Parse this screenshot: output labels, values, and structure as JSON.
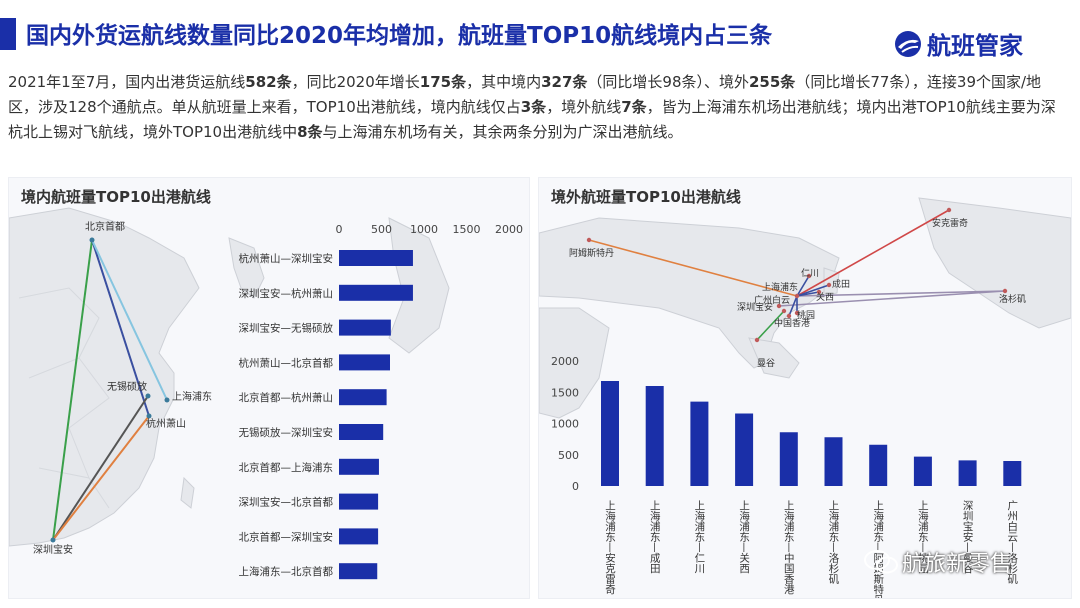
{
  "header": {
    "title": "国内外货运航线数量同比2020年均增加，航班量TOP10航线境内占三条",
    "logo_text": "航班管家",
    "accent_color": "#1a2fa8"
  },
  "summary": {
    "parts": [
      {
        "text": "2021年1至7月，国内出港货运航线",
        "bold": false
      },
      {
        "text": "582条",
        "bold": true
      },
      {
        "text": "，同比2020年增长",
        "bold": false
      },
      {
        "text": "175条",
        "bold": true
      },
      {
        "text": "，其中境内",
        "bold": false
      },
      {
        "text": "327条",
        "bold": true
      },
      {
        "text": "（同比增长98条）、境外",
        "bold": false
      },
      {
        "text": "255条",
        "bold": true
      },
      {
        "text": "（同比增长77条），连接39个国家/地区，涉及128个通航点。单从航班量上来看，TOP10出港航线，境内航线仅占",
        "bold": false
      },
      {
        "text": "3条",
        "bold": true
      },
      {
        "text": "，境外航线",
        "bold": false
      },
      {
        "text": "7条",
        "bold": true
      },
      {
        "text": "，皆为上海浦东机场出港航线；境内出港TOP10航线主要为深杭北上锡对飞航线，境外TOP10出港航线中",
        "bold": false
      },
      {
        "text": "8条",
        "bold": true
      },
      {
        "text": "与上海浦东机场有关，其余两条分别为广深出港航线。",
        "bold": false
      }
    ]
  },
  "left_panel": {
    "title": "境内航班量TOP10出港航线",
    "map_cities": [
      "北京首都",
      "无锡硕放",
      "上海浦东",
      "杭州萧山",
      "深圳宝安"
    ],
    "route_colors": [
      "#3aa04a",
      "#3a4fa0",
      "#86c5e0",
      "#555555",
      "#e08040"
    ]
  },
  "right_panel": {
    "title": "境外航班量TOP10出港航线",
    "map_cities": [
      "阿姆斯特丹",
      "安克雷奇",
      "上海浦东",
      "仁川",
      "成田",
      "广州白云",
      "关西",
      "深圳宝安",
      "桃园",
      "中国香港",
      "洛杉矶",
      "曼谷"
    ],
    "route_colors": [
      "#e08040",
      "#d04848",
      "#9a8fb0",
      "#3a4fa0",
      "#3aa04a"
    ]
  },
  "chart_data": [
    {
      "type": "bar",
      "orientation": "horizontal",
      "title": "境内航班量TOP10出港航线",
      "categories": [
        "杭州萧山—深圳宝安",
        "深圳宝安—杭州萧山",
        "深圳宝安—无锡硕放",
        "杭州萧山—北京首都",
        "北京首都—杭州萧山",
        "无锡硕放—深圳宝安",
        "北京首都—上海浦东",
        "深圳宝安—北京首都",
        "北京首都—深圳宝安",
        "上海浦东—北京首都"
      ],
      "values": [
        870,
        870,
        610,
        600,
        560,
        520,
        470,
        460,
        460,
        450
      ],
      "xlim": [
        0,
        2000
      ],
      "xticks": [
        0,
        500,
        1000,
        1500,
        2000
      ],
      "color": "#1a2fa8",
      "grid": false
    },
    {
      "type": "bar",
      "orientation": "vertical",
      "title": "境外航班量TOP10出港航线",
      "categories": [
        "上海浦东—安克雷奇",
        "上海浦东—成田",
        "上海浦东—仁川",
        "上海浦东—关西",
        "上海浦东—中国香港",
        "上海浦东—洛杉矶",
        "上海浦东—阿姆斯特丹",
        "上海浦东—桃园",
        "深圳宝安—曼谷",
        "广州白云—洛杉矶"
      ],
      "values": [
        1680,
        1600,
        1350,
        1160,
        860,
        780,
        660,
        470,
        410,
        400
      ],
      "ylim": [
        0,
        2000
      ],
      "yticks": [
        0,
        500,
        1000,
        1500,
        2000
      ],
      "color": "#1a2fa8",
      "grid": false
    }
  ],
  "watermark": {
    "text": "航旅新零售"
  }
}
